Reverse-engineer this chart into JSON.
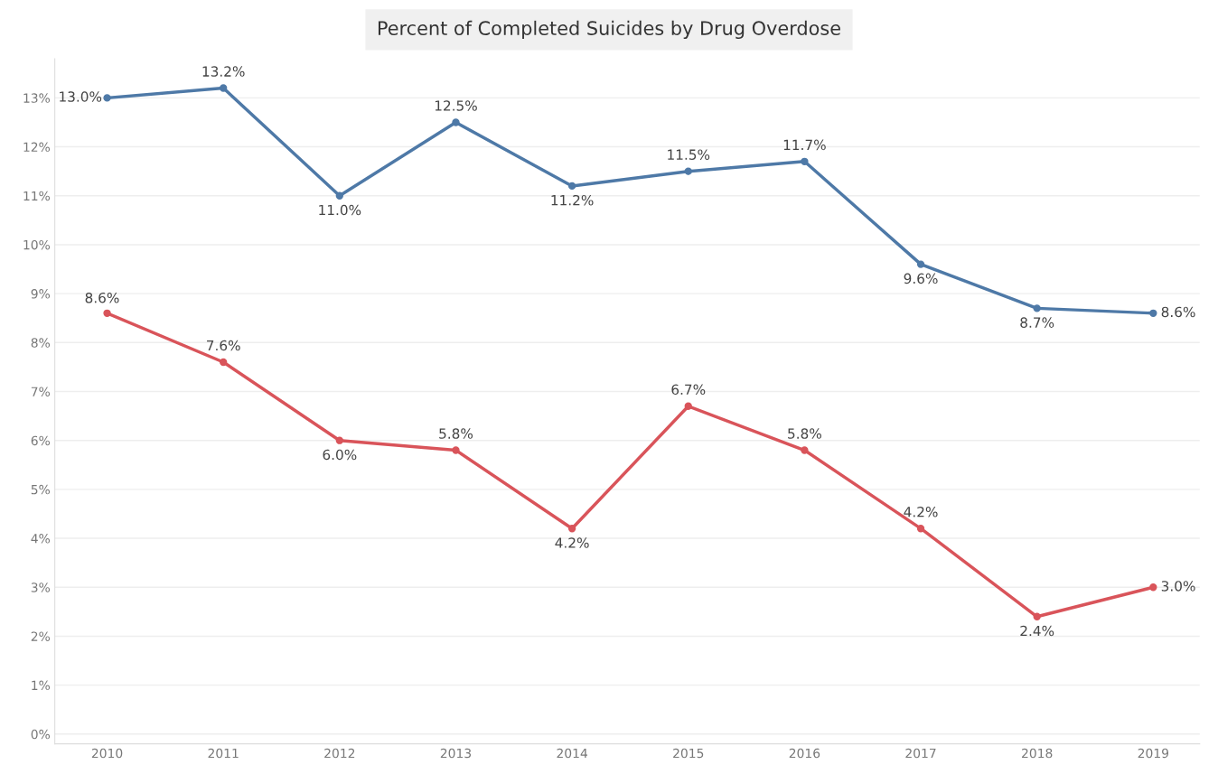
{
  "chart_data": {
    "type": "line",
    "title": "Percent of Completed Suicides by Drug Overdose",
    "categories": [
      "2010",
      "2011",
      "2012",
      "2013",
      "2014",
      "2015",
      "2016",
      "2017",
      "2018",
      "2019"
    ],
    "series": [
      {
        "color": "#4e79a7",
        "values": [
          13.0,
          13.2,
          11.0,
          12.5,
          11.2,
          11.5,
          11.7,
          9.6,
          8.7,
          8.6
        ],
        "value_labels": [
          "13.0%",
          "13.2%",
          "11.0%",
          "12.5%",
          "11.2%",
          "11.5%",
          "11.7%",
          "9.6%",
          "8.7%",
          "8.6%"
        ]
      },
      {
        "color": "#d9545a",
        "values": [
          8.6,
          7.6,
          6.0,
          5.8,
          4.2,
          6.7,
          5.8,
          4.2,
          2.4,
          3.0
        ],
        "value_labels": [
          "8.6%",
          "7.6%",
          "6.0%",
          "5.8%",
          "4.2%",
          "6.7%",
          "5.8%",
          "4.2%",
          "2.4%",
          "3.0%"
        ]
      }
    ],
    "ylim": [
      -0.2,
      13.8
    ],
    "yticks": [
      {
        "value": 0,
        "label": "0%"
      },
      {
        "value": 1,
        "label": "1%"
      },
      {
        "value": 2,
        "label": "2%"
      },
      {
        "value": 3,
        "label": "3%"
      },
      {
        "value": 4,
        "label": "4%"
      },
      {
        "value": 5,
        "label": "5%"
      },
      {
        "value": 6,
        "label": "6%"
      },
      {
        "value": 7,
        "label": "7%"
      },
      {
        "value": 8,
        "label": "8%"
      },
      {
        "value": 9,
        "label": "9%"
      },
      {
        "value": 10,
        "label": "10%"
      },
      {
        "value": 11,
        "label": "11%"
      },
      {
        "value": 12,
        "label": "12%"
      },
      {
        "value": 13,
        "label": "13%"
      }
    ],
    "grid": "y",
    "marker": "circle",
    "line_style": "solid"
  }
}
